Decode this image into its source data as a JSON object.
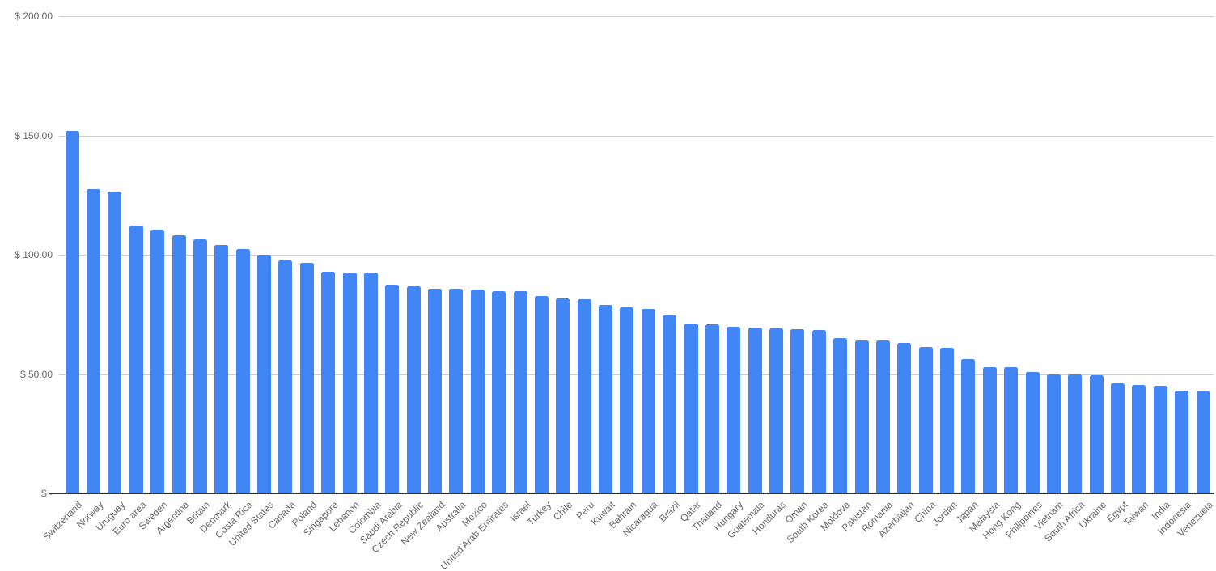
{
  "chart_data": {
    "type": "bar",
    "title": "",
    "xlabel": "",
    "ylabel": "",
    "legend": "none",
    "grid": true,
    "ylim": [
      0,
      200
    ],
    "x_label_rotation_deg": -45,
    "y_ticks": [
      {
        "label": "$ 200.00",
        "value": 200
      },
      {
        "label": "$ 150.00",
        "value": 150
      },
      {
        "label": "$ 100.00",
        "value": 100
      },
      {
        "label": "$ 50.00",
        "value": 50
      },
      {
        "label": "$ -",
        "value": 0
      }
    ],
    "categories": [
      "Switzerland",
      "Norway",
      "Uruguay",
      "Euro area",
      "Sweden",
      "Argentina",
      "Britain",
      "Denmark",
      "Costa Rica",
      "United States",
      "Canada",
      "Poland",
      "Singapore",
      "Lebanon",
      "Colombia",
      "Saudi Arabia",
      "Czech Republic",
      "New Zealand",
      "Australia",
      "Mexico",
      "United Arab Emirates",
      "Israel",
      "Turkey",
      "Chile",
      "Peru",
      "Kuwait",
      "Bahrain",
      "Nicaragua",
      "Brazil",
      "Qatar",
      "Thailand",
      "Hungary",
      "Guatemala",
      "Honduras",
      "Oman",
      "South Korea",
      "Moldova",
      "Pakistan",
      "Romania",
      "Azerbaijan",
      "China",
      "Jordan",
      "Japan",
      "Malaysia",
      "Hong Kong",
      "Philippines",
      "Vietnam",
      "South Africa",
      "Ukraine",
      "Egypt",
      "Taiwan",
      "India",
      "Indonesia",
      "Venezuela"
    ],
    "values": [
      152.0,
      127.5,
      126.3,
      112.3,
      110.4,
      108.0,
      106.3,
      104.0,
      102.4,
      99.9,
      97.6,
      96.7,
      93.0,
      92.6,
      92.4,
      87.5,
      86.9,
      85.8,
      85.7,
      85.3,
      84.7,
      84.6,
      82.6,
      81.7,
      81.4,
      79.0,
      78.1,
      77.3,
      74.6,
      71.2,
      70.7,
      69.7,
      69.6,
      69.3,
      68.7,
      68.6,
      65.2,
      64.2,
      64.1,
      63.2,
      61.4,
      60.9,
      56.2,
      53.0,
      52.9,
      50.8,
      49.9,
      49.7,
      49.6,
      46.0,
      45.4,
      45.1,
      42.9,
      42.6
    ],
    "bar_color": "#4285F4"
  },
  "colors": {
    "background": "#ffffff",
    "gridline": "#cccccc",
    "baseline": "#333333",
    "axis_text": "#666666",
    "bar": "#4285F4"
  }
}
